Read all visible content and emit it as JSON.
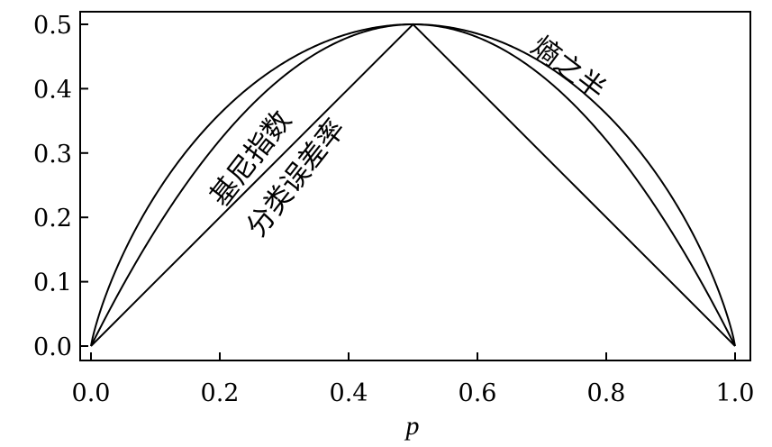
{
  "chart_data": {
    "type": "line",
    "title": "",
    "xlabel": "p",
    "ylabel": "",
    "xlim": [
      0.0,
      1.0
    ],
    "ylim": [
      0.0,
      0.5
    ],
    "xticks": [
      "0.0",
      "0.2",
      "0.4",
      "0.6",
      "0.8",
      "1.0"
    ],
    "yticks": [
      "0.0",
      "0.1",
      "0.2",
      "0.3",
      "0.4",
      "0.5"
    ],
    "grid": false,
    "legend": "none",
    "x": [
      0.0,
      0.05,
      0.1,
      0.15,
      0.2,
      0.25,
      0.3,
      0.35,
      0.4,
      0.45,
      0.5,
      0.55,
      0.6,
      0.65,
      0.7,
      0.75,
      0.8,
      0.85,
      0.9,
      0.95,
      1.0
    ],
    "series": [
      {
        "key": "entropy",
        "values": [
          0.0,
          0.143,
          0.234,
          0.305,
          0.361,
          0.406,
          0.441,
          0.467,
          0.486,
          0.496,
          0.5,
          0.496,
          0.486,
          0.467,
          0.441,
          0.406,
          0.361,
          0.305,
          0.234,
          0.143,
          0.0
        ]
      },
      {
        "key": "gini",
        "values": [
          0.0,
          0.095,
          0.18,
          0.255,
          0.32,
          0.375,
          0.42,
          0.455,
          0.48,
          0.495,
          0.5,
          0.495,
          0.48,
          0.455,
          0.42,
          0.375,
          0.32,
          0.255,
          0.18,
          0.095,
          0.0
        ]
      },
      {
        "key": "error",
        "values": [
          0.0,
          0.05,
          0.1,
          0.15,
          0.2,
          0.25,
          0.3,
          0.35,
          0.4,
          0.45,
          0.5,
          0.45,
          0.4,
          0.35,
          0.3,
          0.25,
          0.2,
          0.15,
          0.1,
          0.05,
          0.0
        ]
      }
    ],
    "annotations": [
      {
        "key": "entropy",
        "text": "熵之半",
        "x": 0.74,
        "y": 0.43,
        "angle": 37
      },
      {
        "key": "gini",
        "text": "基尼指数",
        "x": 0.25,
        "y": 0.29,
        "angle": -52
      },
      {
        "key": "error",
        "text": "分类误差率",
        "x": 0.32,
        "y": 0.26,
        "angle": -52
      }
    ],
    "colors": {
      "line": "#000000",
      "background": "#ffffff"
    }
  }
}
